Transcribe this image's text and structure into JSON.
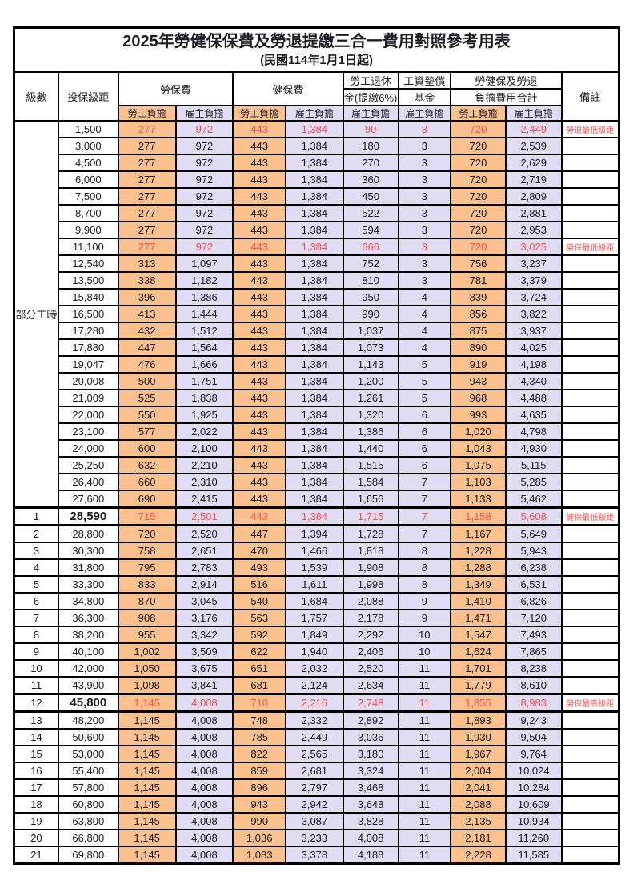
{
  "title": {
    "main": "2025年勞健保保費及勞退提繳三合一費用對照參考用表",
    "sub": "(民國114年1月1日起)"
  },
  "columns": {
    "level": "級數",
    "bracket": "投保級距",
    "labor": "勞保費",
    "health": "健保費",
    "pension_line1": "勞工退休",
    "pension_line2": "金(提繳6%)",
    "wage_line1": "工資墊償",
    "wage_line2": "基金",
    "total_line1": "勞健保及勞退",
    "total_line2": "負擔費用合計",
    "note": "備註",
    "employee_share": "勞工負擔",
    "employer_share": "雇主負擔"
  },
  "section_label": "部分工時",
  "colors": {
    "employee_bg": "#FAC08D",
    "employer_bg": "#E0DCF2",
    "highlight_text": "#FF4C4C",
    "grid": "#000000"
  },
  "rows": [
    {
      "level": "",
      "bracket": "1,500",
      "v": [
        "277",
        "972",
        "443",
        "1,384",
        "90",
        "3",
        "720",
        "2,449"
      ],
      "note": "勞退最低級距",
      "red": true,
      "em": false
    },
    {
      "level": "",
      "bracket": "3,000",
      "v": [
        "277",
        "972",
        "443",
        "1,384",
        "180",
        "3",
        "720",
        "2,539"
      ],
      "note": "",
      "red": false,
      "em": false
    },
    {
      "level": "",
      "bracket": "4,500",
      "v": [
        "277",
        "972",
        "443",
        "1,384",
        "270",
        "3",
        "720",
        "2,629"
      ],
      "note": "",
      "red": false,
      "em": false
    },
    {
      "level": "",
      "bracket": "6,000",
      "v": [
        "277",
        "972",
        "443",
        "1,384",
        "360",
        "3",
        "720",
        "2,719"
      ],
      "note": "",
      "red": false,
      "em": false
    },
    {
      "level": "",
      "bracket": "7,500",
      "v": [
        "277",
        "972",
        "443",
        "1,384",
        "450",
        "3",
        "720",
        "2,809"
      ],
      "note": "",
      "red": false,
      "em": false
    },
    {
      "level": "",
      "bracket": "8,700",
      "v": [
        "277",
        "972",
        "443",
        "1,384",
        "522",
        "3",
        "720",
        "2,881"
      ],
      "note": "",
      "red": false,
      "em": false
    },
    {
      "level": "",
      "bracket": "9,900",
      "v": [
        "277",
        "972",
        "443",
        "1,384",
        "594",
        "3",
        "720",
        "2,953"
      ],
      "note": "",
      "red": false,
      "em": false
    },
    {
      "level": "",
      "bracket": "11,100",
      "v": [
        "277",
        "972",
        "443",
        "1,384",
        "666",
        "3",
        "720",
        "3,025"
      ],
      "note": "勞保最低級距",
      "red": true,
      "em": false
    },
    {
      "level": "",
      "bracket": "12,540",
      "v": [
        "313",
        "1,097",
        "443",
        "1,384",
        "752",
        "3",
        "756",
        "3,237"
      ],
      "note": "",
      "red": false,
      "em": false
    },
    {
      "level": "",
      "bracket": "13,500",
      "v": [
        "338",
        "1,182",
        "443",
        "1,384",
        "810",
        "3",
        "781",
        "3,379"
      ],
      "note": "",
      "red": false,
      "em": false
    },
    {
      "level": "",
      "bracket": "15,840",
      "v": [
        "396",
        "1,386",
        "443",
        "1,384",
        "950",
        "4",
        "839",
        "3,724"
      ],
      "note": "",
      "red": false,
      "em": false
    },
    {
      "level": "",
      "bracket": "16,500",
      "v": [
        "413",
        "1,444",
        "443",
        "1,384",
        "990",
        "4",
        "856",
        "3,822"
      ],
      "note": "",
      "red": false,
      "em": false
    },
    {
      "level": "",
      "bracket": "17,280",
      "v": [
        "432",
        "1,512",
        "443",
        "1,384",
        "1,037",
        "4",
        "875",
        "3,937"
      ],
      "note": "",
      "red": false,
      "em": false
    },
    {
      "level": "",
      "bracket": "17,880",
      "v": [
        "447",
        "1,564",
        "443",
        "1,384",
        "1,073",
        "4",
        "890",
        "4,025"
      ],
      "note": "",
      "red": false,
      "em": false
    },
    {
      "level": "",
      "bracket": "19,047",
      "v": [
        "476",
        "1,666",
        "443",
        "1,384",
        "1,143",
        "5",
        "919",
        "4,198"
      ],
      "note": "",
      "red": false,
      "em": false
    },
    {
      "level": "",
      "bracket": "20,008",
      "v": [
        "500",
        "1,751",
        "443",
        "1,384",
        "1,200",
        "5",
        "943",
        "4,340"
      ],
      "note": "",
      "red": false,
      "em": false
    },
    {
      "level": "",
      "bracket": "21,009",
      "v": [
        "525",
        "1,838",
        "443",
        "1,384",
        "1,261",
        "5",
        "968",
        "4,488"
      ],
      "note": "",
      "red": false,
      "em": false
    },
    {
      "level": "",
      "bracket": "22,000",
      "v": [
        "550",
        "1,925",
        "443",
        "1,384",
        "1,320",
        "6",
        "993",
        "4,635"
      ],
      "note": "",
      "red": false,
      "em": false
    },
    {
      "level": "",
      "bracket": "23,100",
      "v": [
        "577",
        "2,022",
        "443",
        "1,384",
        "1,386",
        "6",
        "1,020",
        "4,798"
      ],
      "note": "",
      "red": false,
      "em": false
    },
    {
      "level": "",
      "bracket": "24,000",
      "v": [
        "600",
        "2,100",
        "443",
        "1,384",
        "1,440",
        "6",
        "1,043",
        "4,930"
      ],
      "note": "",
      "red": false,
      "em": false
    },
    {
      "level": "",
      "bracket": "25,250",
      "v": [
        "632",
        "2,210",
        "443",
        "1,384",
        "1,515",
        "6",
        "1,075",
        "5,115"
      ],
      "note": "",
      "red": false,
      "em": false
    },
    {
      "level": "",
      "bracket": "26,400",
      "v": [
        "660",
        "2,310",
        "443",
        "1,384",
        "1,584",
        "7",
        "1,103",
        "5,285"
      ],
      "note": "",
      "red": false,
      "em": false
    },
    {
      "level": "",
      "bracket": "27,600",
      "v": [
        "690",
        "2,415",
        "443",
        "1,384",
        "1,656",
        "7",
        "1,133",
        "5,462"
      ],
      "note": "",
      "red": false,
      "em": false
    },
    {
      "level": "1",
      "bracket": "28,590",
      "v": [
        "715",
        "2,501",
        "443",
        "1,384",
        "1,715",
        "7",
        "1,158",
        "5,608"
      ],
      "note": "健保最低級距",
      "red": true,
      "em": true
    },
    {
      "level": "2",
      "bracket": "28,800",
      "v": [
        "720",
        "2,520",
        "447",
        "1,394",
        "1,728",
        "7",
        "1,167",
        "5,649"
      ],
      "note": "",
      "red": false,
      "em": false
    },
    {
      "level": "3",
      "bracket": "30,300",
      "v": [
        "758",
        "2,651",
        "470",
        "1,466",
        "1,818",
        "8",
        "1,228",
        "5,943"
      ],
      "note": "",
      "red": false,
      "em": false
    },
    {
      "level": "4",
      "bracket": "31,800",
      "v": [
        "795",
        "2,783",
        "493",
        "1,539",
        "1,908",
        "8",
        "1,288",
        "6,238"
      ],
      "note": "",
      "red": false,
      "em": false
    },
    {
      "level": "5",
      "bracket": "33,300",
      "v": [
        "833",
        "2,914",
        "516",
        "1,611",
        "1,998",
        "8",
        "1,349",
        "6,531"
      ],
      "note": "",
      "red": false,
      "em": false
    },
    {
      "level": "6",
      "bracket": "34,800",
      "v": [
        "870",
        "3,045",
        "540",
        "1,684",
        "2,088",
        "9",
        "1,410",
        "6,826"
      ],
      "note": "",
      "red": false,
      "em": false
    },
    {
      "level": "7",
      "bracket": "36,300",
      "v": [
        "908",
        "3,176",
        "563",
        "1,757",
        "2,178",
        "9",
        "1,471",
        "7,120"
      ],
      "note": "",
      "red": false,
      "em": false
    },
    {
      "level": "8",
      "bracket": "38,200",
      "v": [
        "955",
        "3,342",
        "592",
        "1,849",
        "2,292",
        "10",
        "1,547",
        "7,493"
      ],
      "note": "",
      "red": false,
      "em": false
    },
    {
      "level": "9",
      "bracket": "40,100",
      "v": [
        "1,002",
        "3,509",
        "622",
        "1,940",
        "2,406",
        "10",
        "1,624",
        "7,865"
      ],
      "note": "",
      "red": false,
      "em": false
    },
    {
      "level": "10",
      "bracket": "42,000",
      "v": [
        "1,050",
        "3,675",
        "651",
        "2,032",
        "2,520",
        "11",
        "1,701",
        "8,238"
      ],
      "note": "",
      "red": false,
      "em": false
    },
    {
      "level": "11",
      "bracket": "43,900",
      "v": [
        "1,098",
        "3,841",
        "681",
        "2,124",
        "2,634",
        "11",
        "1,779",
        "8,610"
      ],
      "note": "",
      "red": false,
      "em": false
    },
    {
      "level": "12",
      "bracket": "45,800",
      "v": [
        "1,145",
        "4,008",
        "710",
        "2,216",
        "2,748",
        "11",
        "1,855",
        "8,983"
      ],
      "note": "勞保最高級距",
      "red": true,
      "em": true
    },
    {
      "level": "13",
      "bracket": "48,200",
      "v": [
        "1,145",
        "4,008",
        "748",
        "2,332",
        "2,892",
        "11",
        "1,893",
        "9,243"
      ],
      "note": "",
      "red": false,
      "em": false
    },
    {
      "level": "14",
      "bracket": "50,600",
      "v": [
        "1,145",
        "4,008",
        "785",
        "2,449",
        "3,036",
        "11",
        "1,930",
        "9,504"
      ],
      "note": "",
      "red": false,
      "em": false
    },
    {
      "level": "15",
      "bracket": "53,000",
      "v": [
        "1,145",
        "4,008",
        "822",
        "2,565",
        "3,180",
        "11",
        "1,967",
        "9,764"
      ],
      "note": "",
      "red": false,
      "em": false
    },
    {
      "level": "16",
      "bracket": "55,400",
      "v": [
        "1,145",
        "4,008",
        "859",
        "2,681",
        "3,324",
        "11",
        "2,004",
        "10,024"
      ],
      "note": "",
      "red": false,
      "em": false
    },
    {
      "level": "17",
      "bracket": "57,800",
      "v": [
        "1,145",
        "4,008",
        "896",
        "2,797",
        "3,468",
        "11",
        "2,041",
        "10,284"
      ],
      "note": "",
      "red": false,
      "em": false
    },
    {
      "level": "18",
      "bracket": "60,800",
      "v": [
        "1,145",
        "4,008",
        "943",
        "2,942",
        "3,648",
        "11",
        "2,088",
        "10,609"
      ],
      "note": "",
      "red": false,
      "em": false
    },
    {
      "level": "19",
      "bracket": "63,800",
      "v": [
        "1,145",
        "4,008",
        "990",
        "3,087",
        "3,828",
        "11",
        "2,135",
        "10,934"
      ],
      "note": "",
      "red": false,
      "em": false
    },
    {
      "level": "20",
      "bracket": "66,800",
      "v": [
        "1,145",
        "4,008",
        "1,036",
        "3,233",
        "4,008",
        "11",
        "2,181",
        "11,260"
      ],
      "note": "",
      "red": false,
      "em": false
    },
    {
      "level": "21",
      "bracket": "69,800",
      "v": [
        "1,145",
        "4,008",
        "1,083",
        "3,378",
        "4,188",
        "11",
        "2,228",
        "11,585"
      ],
      "note": "",
      "red": false,
      "em": false
    }
  ]
}
